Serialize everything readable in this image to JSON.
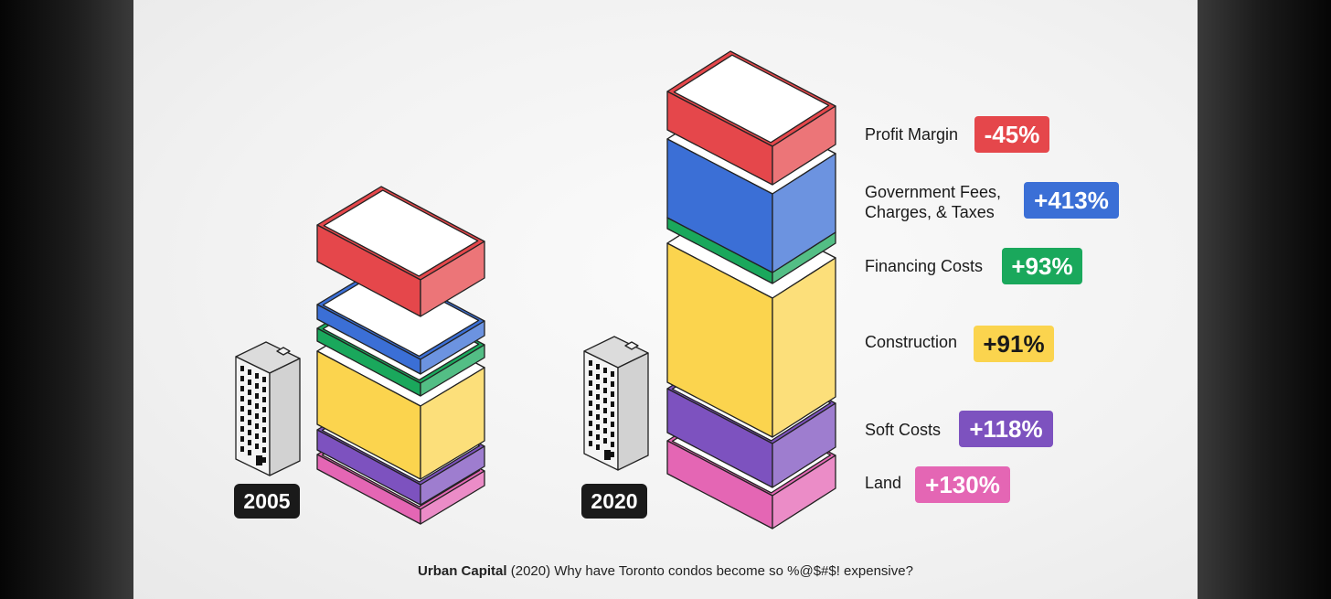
{
  "years": {
    "left": "2005",
    "right": "2020"
  },
  "items": [
    {
      "label_lines": [
        "Profit Margin"
      ],
      "change": "-45%",
      "color": "#e5474b"
    },
    {
      "label_lines": [
        "Government Fees,",
        "Charges, & Taxes"
      ],
      "change": "+413%",
      "color": "#3b6fd6"
    },
    {
      "label_lines": [
        "Financing Costs"
      ],
      "change": "+93%",
      "color": "#1aa85c"
    },
    {
      "label_lines": [
        "Construction"
      ],
      "change": "+91%",
      "color": "#fbd44e"
    },
    {
      "label_lines": [
        "Soft Costs"
      ],
      "change": "+118%",
      "color": "#7d52bf"
    },
    {
      "label_lines": [
        "Land"
      ],
      "change": "+130%",
      "color": "#e466b4"
    }
  ],
  "caption": {
    "source": "Urban Capital",
    "text": " (2020) Why have Toronto condos become so %@$#$! expensive?"
  }
}
